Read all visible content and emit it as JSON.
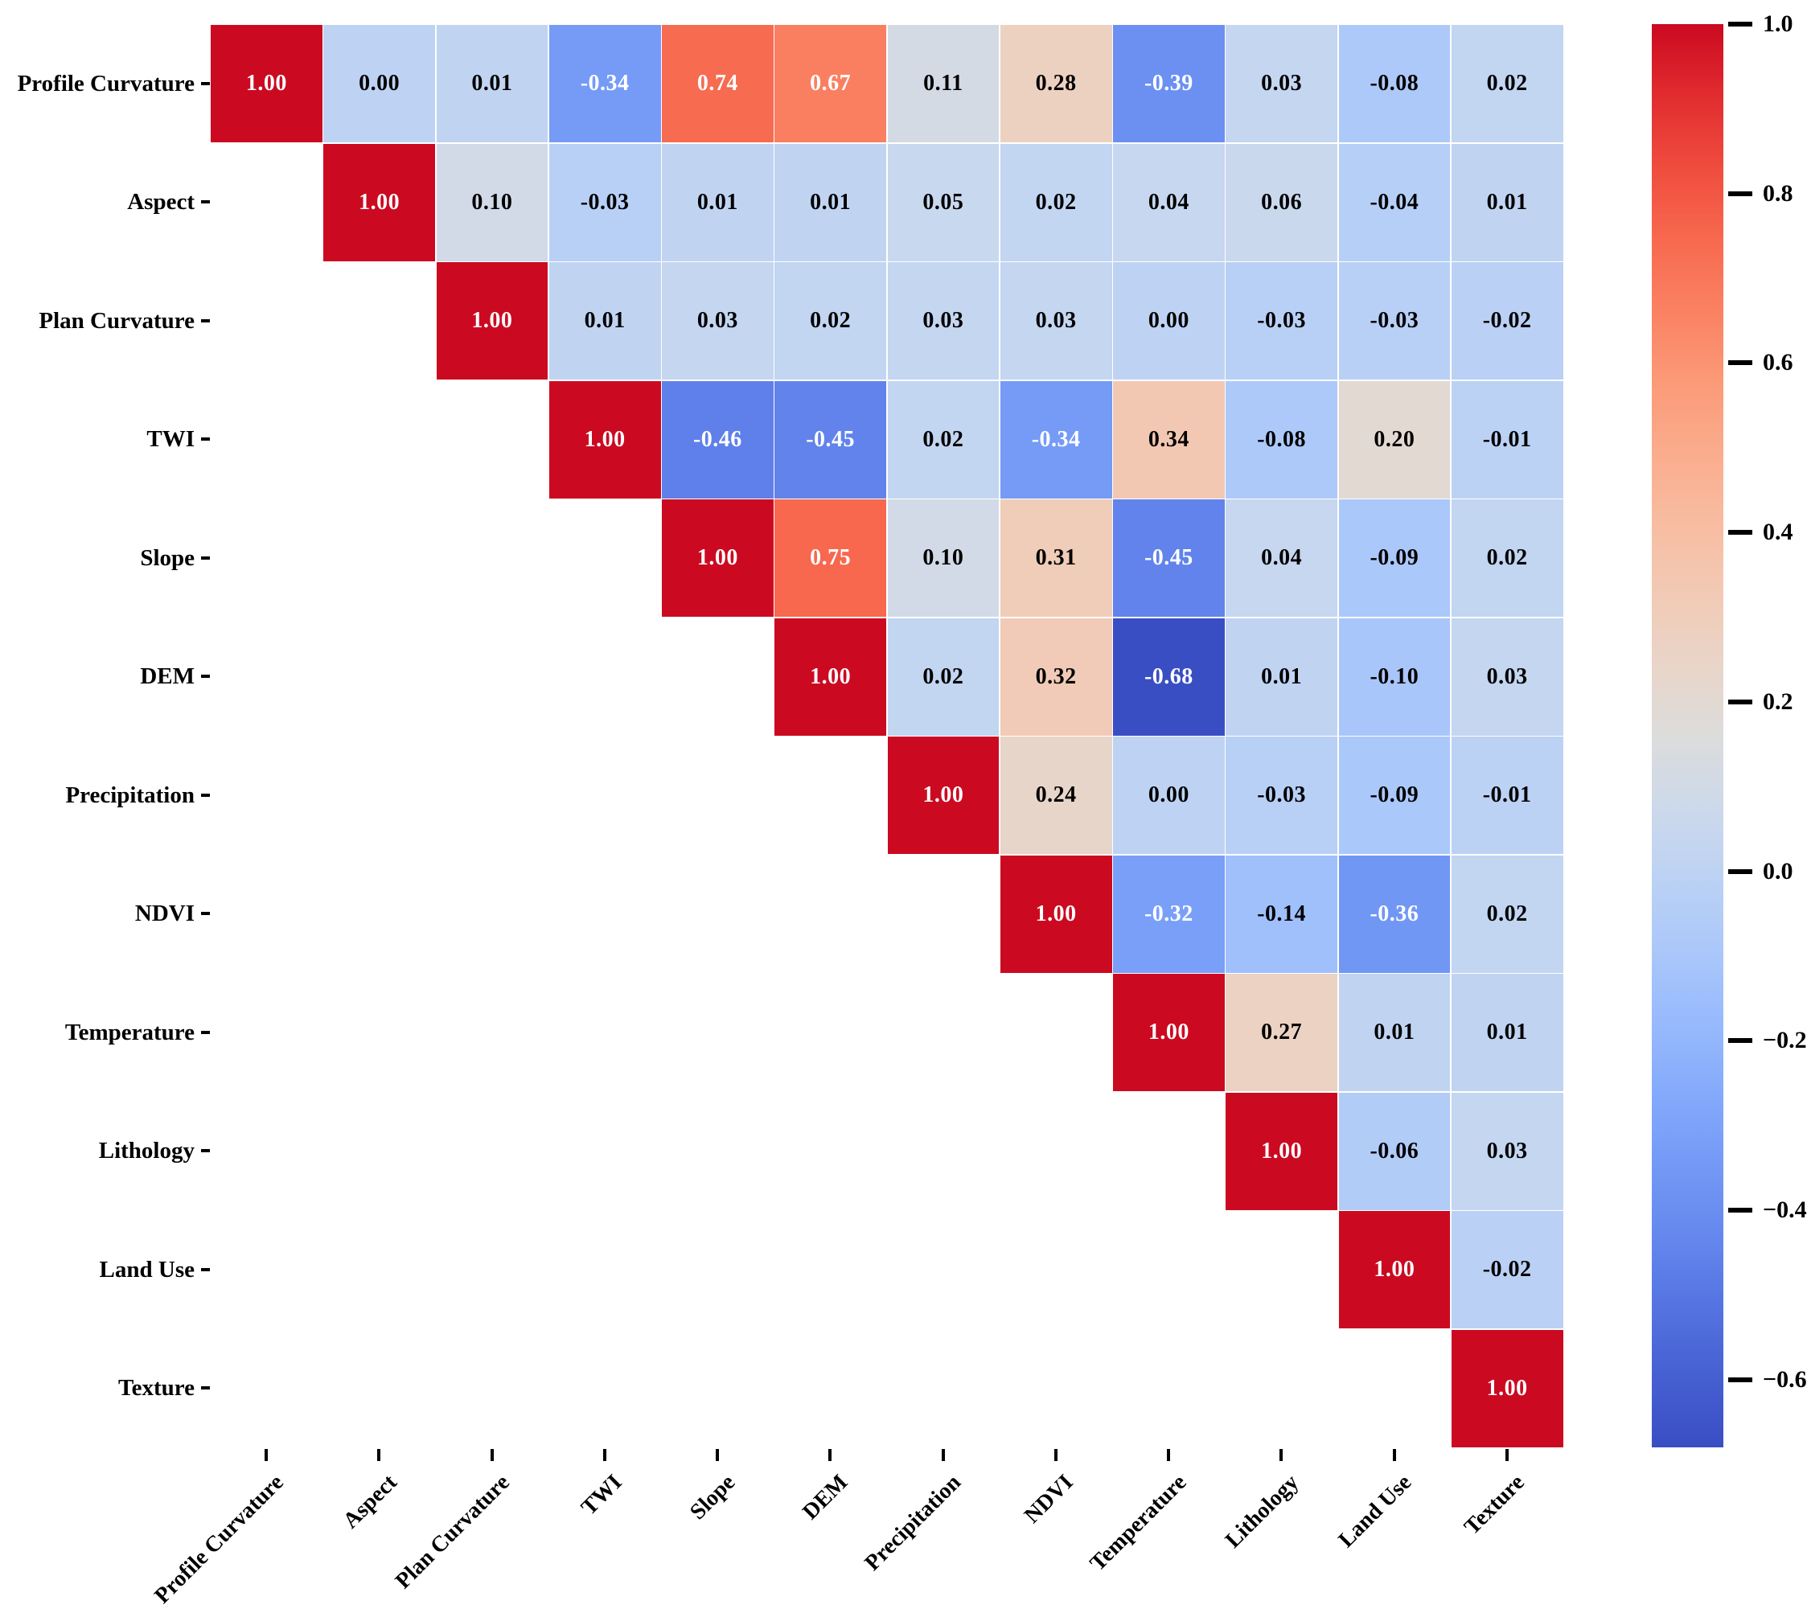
{
  "chart_data": {
    "type": "heatmap",
    "title": "",
    "description": "Upper-triangular correlation matrix heatmap of landslide conditioning factors",
    "variables": [
      "Profile Curvature",
      "Aspect",
      "Plan Curvature",
      "TWI",
      "Slope",
      "DEM",
      "Precipitation",
      "NDVI",
      "Temperature",
      "Lithology",
      "Land Use",
      "Texture"
    ],
    "matrix": [
      [
        1.0,
        0.0,
        0.01,
        -0.34,
        0.74,
        0.67,
        0.11,
        0.28,
        -0.39,
        0.03,
        -0.08,
        0.02
      ],
      [
        null,
        1.0,
        0.1,
        -0.03,
        0.01,
        0.01,
        0.05,
        0.02,
        0.04,
        0.06,
        -0.04,
        0.01
      ],
      [
        null,
        null,
        1.0,
        0.01,
        0.03,
        0.02,
        0.03,
        0.03,
        0.0,
        -0.03,
        -0.03,
        -0.02
      ],
      [
        null,
        null,
        null,
        1.0,
        -0.46,
        -0.45,
        0.02,
        -0.34,
        0.34,
        -0.08,
        0.2,
        -0.01
      ],
      [
        null,
        null,
        null,
        null,
        1.0,
        0.75,
        0.1,
        0.31,
        -0.45,
        0.04,
        -0.09,
        0.02
      ],
      [
        null,
        null,
        null,
        null,
        null,
        1.0,
        0.02,
        0.32,
        -0.68,
        0.01,
        -0.1,
        0.03
      ],
      [
        null,
        null,
        null,
        null,
        null,
        null,
        1.0,
        0.24,
        0.0,
        -0.03,
        -0.09,
        -0.01
      ],
      [
        null,
        null,
        null,
        null,
        null,
        null,
        null,
        1.0,
        -0.32,
        -0.14,
        -0.36,
        0.02
      ],
      [
        null,
        null,
        null,
        null,
        null,
        null,
        null,
        null,
        1.0,
        0.27,
        0.01,
        0.01
      ],
      [
        null,
        null,
        null,
        null,
        null,
        null,
        null,
        null,
        null,
        1.0,
        -0.06,
        0.03
      ],
      [
        null,
        null,
        null,
        null,
        null,
        null,
        null,
        null,
        null,
        null,
        1.0,
        -0.02
      ],
      [
        null,
        null,
        null,
        null,
        null,
        null,
        null,
        null,
        null,
        null,
        null,
        1.0
      ]
    ],
    "value_format": "0.00",
    "vmin": -0.68,
    "vmax": 1.0,
    "colormap": "coolwarm",
    "colormap_anchors": [
      [
        0.0,
        58,
        78,
        196
      ],
      [
        0.0625,
        73,
        101,
        214
      ],
      [
        0.125,
        93,
        126,
        233
      ],
      [
        0.1875,
        112,
        150,
        245
      ],
      [
        0.25,
        133,
        170,
        252
      ],
      [
        0.3125,
        157,
        190,
        253
      ],
      [
        0.375,
        180,
        206,
        248
      ],
      [
        0.4375,
        201,
        216,
        238
      ],
      [
        0.5,
        220,
        220,
        219
      ],
      [
        0.5625,
        236,
        211,
        196
      ],
      [
        0.625,
        246,
        196,
        171
      ],
      [
        0.6875,
        250,
        177,
        145
      ],
      [
        0.75,
        251,
        153,
        119
      ],
      [
        0.8125,
        250,
        123,
        93
      ],
      [
        0.875,
        245,
        92,
        69
      ],
      [
        0.9375,
        230,
        52,
        50
      ],
      [
        1.0,
        203,
        10,
        33
      ]
    ],
    "color_positive_max": "#CB0A21",
    "color_negative_min": "#3A4EC4",
    "color_mid": "#DCDCDB",
    "annotation_text_dark": "#000000",
    "annotation_text_light": "#ffffff",
    "luminance_threshold": 0.408,
    "grid": false,
    "legend_position": "right",
    "colorbar_ticks": [
      1.0,
      0.8,
      0.6,
      0.4,
      0.2,
      0.0,
      -0.2,
      -0.4,
      -0.6
    ],
    "colorbar_tick_labels": [
      "1.0",
      "0.8",
      "0.6",
      "0.4",
      "0.2",
      "0.0",
      "−0.2",
      "−0.4",
      "−0.6"
    ]
  }
}
